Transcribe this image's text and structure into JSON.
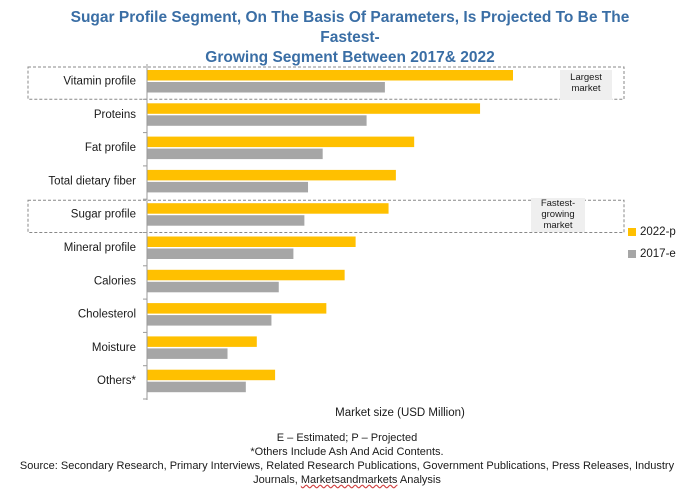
{
  "header": {
    "title_line1": "Sugar Profile Segment, On The Basis Of Parameters, Is Projected To Be The Fastest-",
    "title_line2": "Growing Segment Between 2017& 2022"
  },
  "chart_data": {
    "type": "bar",
    "orientation": "horizontal",
    "categories": [
      "Vitamin profile",
      "Proteins",
      "Fat profile",
      "Total dietary fiber",
      "Sugar profile",
      "Mineral profile",
      "Calories",
      "Cholesterol",
      "Moisture",
      "Others*"
    ],
    "series": [
      {
        "name": "2022-p",
        "color": "#ffc000",
        "values": [
          100,
          91,
          73,
          68,
          66,
          57,
          54,
          49,
          30,
          35
        ]
      },
      {
        "name": "2017-e",
        "color": "#a6a6a6",
        "values": [
          65,
          60,
          48,
          44,
          43,
          40,
          36,
          34,
          22,
          27
        ]
      }
    ],
    "xlabel": "Market size (USD Million)",
    "ylabel": "",
    "xlim": [
      0,
      130
    ],
    "grid": false,
    "legend": "right",
    "highlights": [
      {
        "category": "Vitamin profile",
        "label": "Largest market"
      },
      {
        "category": "Sugar profile",
        "label": "Fastest-growing market"
      }
    ]
  },
  "callouts": {
    "largest_line1": "Largest",
    "largest_line2": "market",
    "fastest_line1": "Fastest-",
    "fastest_line2": "growing",
    "fastest_line3": "market"
  },
  "footer": {
    "note1": "E – Estimated; P – Projected",
    "note2": "*Others Include Ash And Acid Contents.",
    "source_line1": "Source: Secondary Research, Primary Interviews, Related Research Publications, Government Publications, Press Releases, Industry",
    "source_line2_a": "Journals, ",
    "source_line2_b": "Marketsandmarkets",
    "source_line2_c": " Analysis"
  }
}
